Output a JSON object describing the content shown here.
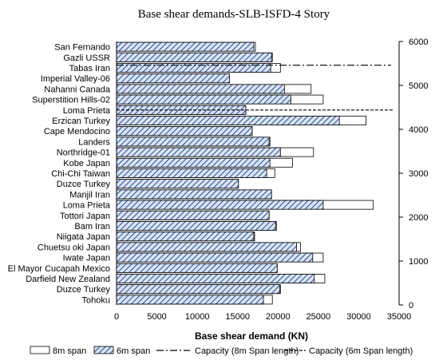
{
  "chart_data": {
    "type": "bar",
    "orientation": "horizontal",
    "title": "Base shear demands-SLB-ISFD-4 Story",
    "xlabel": "Base shear demand  (KN)",
    "xlim": [
      0,
      35000
    ],
    "xticks": [
      0,
      5000,
      10000,
      15000,
      20000,
      25000,
      30000,
      35000
    ],
    "secondary_ylim": [
      0,
      6000
    ],
    "secondary_yticks": [
      0,
      1000,
      2000,
      3000,
      4000,
      5000,
      6000
    ],
    "grid": false,
    "legend_position": "bottom",
    "categories": [
      "San Fernando",
      "Gazli USSR",
      "Tabas Iran",
      "Imperial Valley-06",
      "Nahanni Canada",
      "Superstition Hills-02",
      "Loma Prieta",
      "Erzican Turkey",
      "Cape Mendocino",
      "Landers",
      "Northridge-01",
      "Kobe Japan",
      "Chi-Chi Taiwan",
      "Duzce Turkey",
      "Manjil Iran",
      "Loma Prieta",
      "Tottori Japan",
      "Bam Iran",
      "Niigata Japan",
      "Chuetsu oki Japan",
      "Iwate Japan",
      "El Mayor Cucapah Mexico",
      "Darfield New Zealand",
      "Duzce Turkey",
      "Tohoku"
    ],
    "series": [
      {
        "name": "8m span",
        "style": "outline",
        "values": [
          17200,
          19300,
          20300,
          14000,
          24100,
          25600,
          16000,
          30900,
          16800,
          19000,
          24400,
          21800,
          19600,
          15100,
          19200,
          31800,
          18900,
          19800,
          17100,
          22800,
          25600,
          19900,
          25800,
          20300,
          19300
        ]
      },
      {
        "name": "6m span",
        "style": "hatched",
        "values": [
          17000,
          19200,
          19100,
          14000,
          20800,
          21600,
          16000,
          27600,
          16800,
          18900,
          20300,
          19000,
          18600,
          15100,
          19200,
          25600,
          18900,
          19700,
          17000,
          22300,
          24300,
          19900,
          24500,
          20200,
          18200
        ]
      },
      {
        "name": "Capacity (8m Span length)",
        "style": "dash-dot",
        "value": 5460,
        "axis": "secondary"
      },
      {
        "name": "Capacity (6m Span length)",
        "style": "dashed",
        "value": 4440,
        "axis": "secondary"
      }
    ],
    "colors": {
      "hatch": "#2f5597",
      "hatch_bg": "#dbe5f5",
      "outline": "#000000"
    }
  }
}
